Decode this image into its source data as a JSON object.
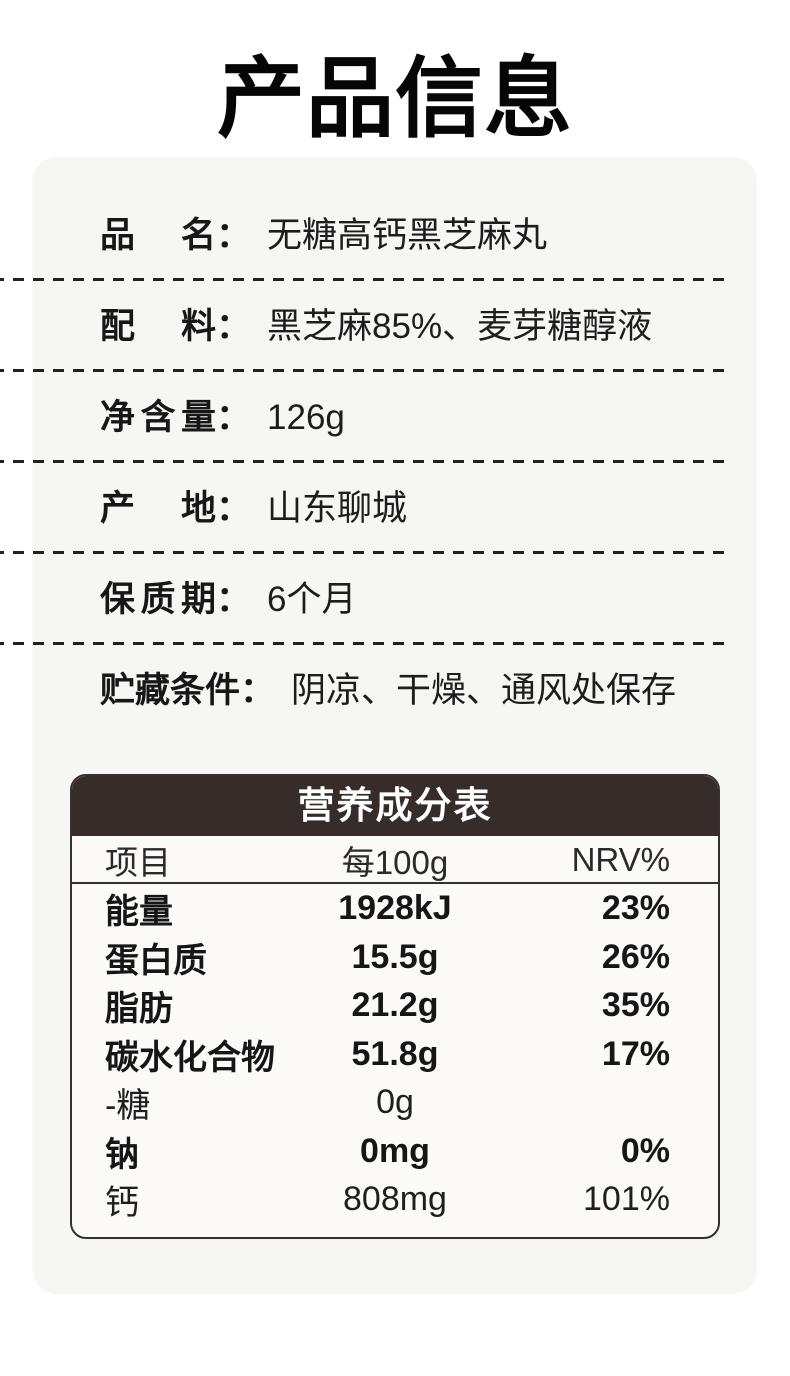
{
  "title": "产品信息",
  "info": {
    "colon": "：",
    "rows": [
      {
        "label": "品名",
        "value": "无糖高钙黑芝麻丸"
      },
      {
        "label": "配料",
        "value": "黑芝麻85%、麦芽糖醇液"
      },
      {
        "label": "净含量",
        "value": "126g"
      },
      {
        "label": "产地",
        "value": "山东聊城"
      },
      {
        "label": "保质期",
        "value": "6个月"
      },
      {
        "label": "贮藏条件",
        "value": "阴凉、干燥、通风处保存"
      }
    ]
  },
  "nutrition": {
    "title": "营养成分表",
    "columns": [
      "项目",
      "每100g",
      "NRV%"
    ],
    "rows": [
      {
        "name": "能量",
        "per100g": "1928kJ",
        "nrv": "23%"
      },
      {
        "name": "蛋白质",
        "per100g": "15.5g",
        "nrv": "26%"
      },
      {
        "name": "脂肪",
        "per100g": "21.2g",
        "nrv": "35%"
      },
      {
        "name": "碳水化合物",
        "per100g": "51.8g",
        "nrv": "17%"
      },
      {
        "name": "-糖",
        "per100g": "0g",
        "nrv": ""
      },
      {
        "name": "钠",
        "per100g": "0mg",
        "nrv": "0%"
      },
      {
        "name": "钙",
        "per100g": "808mg",
        "nrv": "101%"
      }
    ]
  },
  "colors": {
    "accent_dark": "#362d2b",
    "table_border": "#35302e",
    "card_bg": "#f6f6f5",
    "table_bg": "#fbfaf9",
    "page_bg": "#ffffff",
    "ink": "#1f1f1f"
  }
}
